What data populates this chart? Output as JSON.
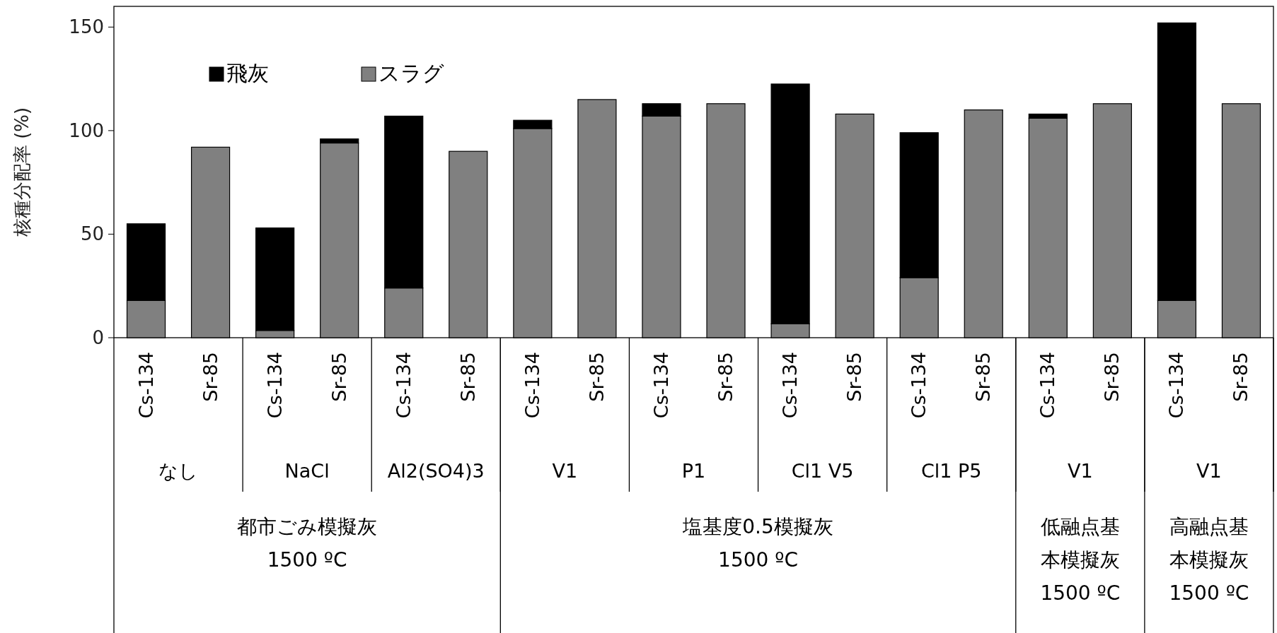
{
  "chart_data": {
    "type": "bar",
    "stacked": true,
    "ylabel": "核種分配率 (%)",
    "categories": [
      "Cs-134",
      "Sr-85",
      "Cs-134",
      "Sr-85",
      "Cs-134",
      "Sr-85",
      "Cs-134",
      "Sr-85",
      "Cs-134",
      "Sr-85",
      "Cs-134",
      "Sr-85",
      "Cs-134",
      "Sr-85",
      "Cs-134",
      "Sr-85",
      "Cs-134",
      "Sr-85"
    ],
    "series": [
      {
        "name": "スラグ",
        "color": "#808080",
        "values": [
          18,
          92,
          3.5,
          94,
          24,
          90,
          101,
          115,
          107,
          113,
          6.7,
          108,
          29,
          110,
          106,
          113,
          18,
          113
        ]
      },
      {
        "name": "飛灰",
        "color": "#000000",
        "values": [
          37,
          null,
          49.5,
          2,
          83,
          null,
          4,
          null,
          6,
          null,
          115.8,
          null,
          70,
          null,
          2,
          null,
          134,
          null
        ]
      }
    ],
    "annotations": [
      "なし",
      "NaCl",
      "Al2(SO4)3",
      "V1",
      "P1",
      "Cl1 V5",
      "Cl1 P5",
      "V1",
      "V1",
      "都市ごみ模擬灰\n1500 ºC",
      "塩基度0.5模擬灰\n1500 ºC",
      "低融点基本模擬灰\n1500 ºC",
      "高融点基本模擬灰\n1500 ºC"
    ],
    "ylim": [
      0,
      160
    ],
    "yticks": [
      0,
      50,
      100,
      150
    ],
    "grid": false,
    "legend": "top left"
  }
}
